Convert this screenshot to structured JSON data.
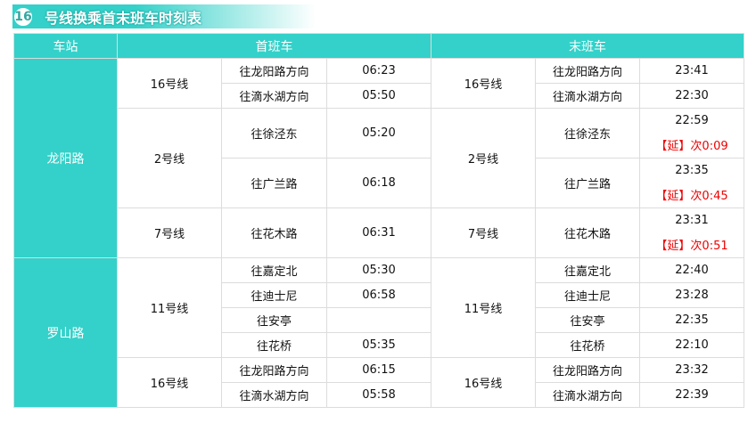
{
  "title": {
    "badge": "16",
    "text": "号线换乘首末班车时刻表"
  },
  "colors": {
    "accent": "#33d1c9",
    "delay": "#ee0000",
    "border": "#dcdcdc"
  },
  "headers": {
    "station": "车站",
    "first": "首班车",
    "last": "末班车"
  },
  "stations": [
    {
      "name": "龙阳路",
      "lines": [
        {
          "line": "16号线",
          "first": [
            {
              "dir": "往龙阳路方向",
              "time": "06:23"
            },
            {
              "dir": "往滴水湖方向",
              "time": "05:50"
            }
          ],
          "last": [
            {
              "dir": "往龙阳路方向",
              "time": "23:41"
            },
            {
              "dir": "往滴水湖方向",
              "time": "22:30"
            }
          ]
        },
        {
          "line": "2号线",
          "first": [
            {
              "dir": "往徐泾东",
              "time": "05:20"
            },
            {
              "dir": "往广兰路",
              "time": "06:18"
            }
          ],
          "last": [
            {
              "dir": "往徐泾东",
              "time": "22:59",
              "delay": "【延】次0:09"
            },
            {
              "dir": "往广兰路",
              "time": "23:35",
              "delay": "【延】次0:45"
            }
          ]
        },
        {
          "line": "7号线",
          "first": [
            {
              "dir": "往花木路",
              "time": "06:31"
            }
          ],
          "last": [
            {
              "dir": "往花木路",
              "time": "23:31",
              "delay": "【延】次0:51"
            }
          ]
        }
      ]
    },
    {
      "name": "罗山路",
      "lines": [
        {
          "line": "11号线",
          "first": [
            {
              "dir": "往嘉定北",
              "time": "05:30"
            },
            {
              "dir": "往迪士尼",
              "time": "06:58"
            },
            {
              "dir": "往安亭",
              "time": ""
            },
            {
              "dir": "往花桥",
              "time": "05:35"
            }
          ],
          "last": [
            {
              "dir": "往嘉定北",
              "time": "22:40"
            },
            {
              "dir": "往迪士尼",
              "time": "23:28"
            },
            {
              "dir": "往安亭",
              "time": "22:35"
            },
            {
              "dir": "往花桥",
              "time": "22:10"
            }
          ]
        },
        {
          "line": "16号线",
          "first": [
            {
              "dir": "往龙阳路方向",
              "time": "06:15"
            },
            {
              "dir": "往滴水湖方向",
              "time": "05:58"
            }
          ],
          "last": [
            {
              "dir": "往龙阳路方向",
              "time": "23:32"
            },
            {
              "dir": "往滴水湖方向",
              "time": "22:39"
            }
          ]
        }
      ]
    }
  ]
}
